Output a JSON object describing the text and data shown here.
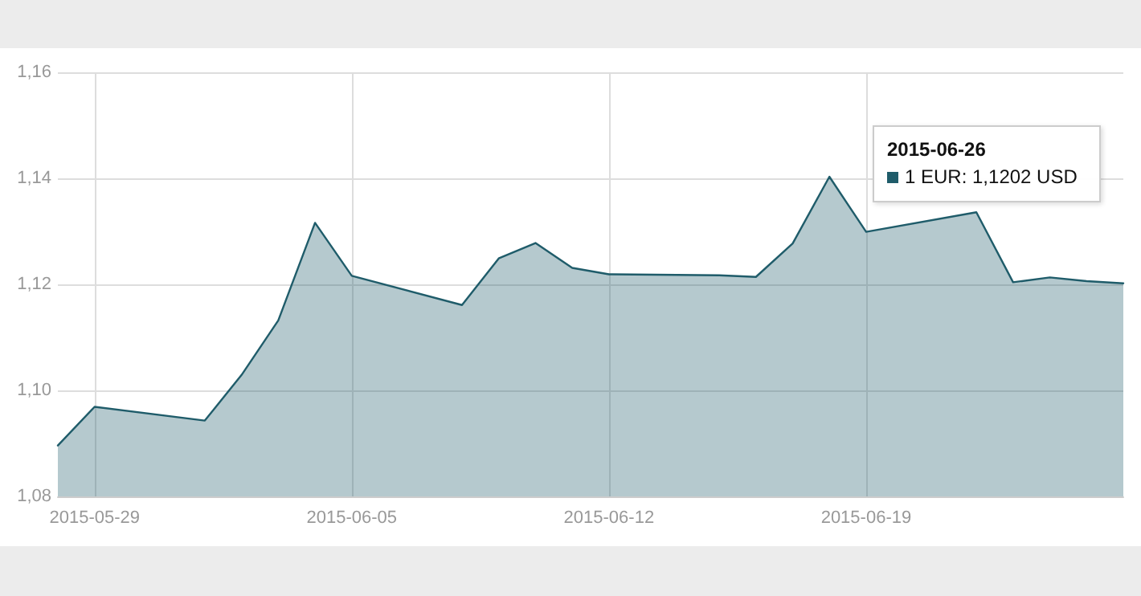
{
  "chart_data": {
    "type": "area",
    "x": [
      "2015-05-28",
      "2015-05-29",
      "2015-06-01",
      "2015-06-02",
      "2015-06-03",
      "2015-06-04",
      "2015-06-05",
      "2015-06-08",
      "2015-06-09",
      "2015-06-10",
      "2015-06-11",
      "2015-06-12",
      "2015-06-15",
      "2015-06-16",
      "2015-06-17",
      "2015-06-18",
      "2015-06-19",
      "2015-06-22",
      "2015-06-23",
      "2015-06-24",
      "2015-06-25",
      "2015-06-26"
    ],
    "series": [
      {
        "color": "#1f5c6a",
        "values": [
          1.0896,
          1.0969,
          1.0943,
          1.1029,
          1.1132,
          1.1316,
          1.1216,
          1.1161,
          1.1249,
          1.1278,
          1.1231,
          1.1219,
          1.1217,
          1.1214,
          1.1277,
          1.1403,
          1.1299,
          1.1336,
          1.1204,
          1.1213,
          1.1206,
          1.1202
        ]
      }
    ],
    "xlim": [
      "2015-05-28",
      "2015-06-26"
    ],
    "xticks": [
      "2015-05-29",
      "2015-06-05",
      "2015-06-12",
      "2015-06-19"
    ],
    "ylim": [
      1.08,
      1.16
    ],
    "yticks": [
      {
        "value": 1.08,
        "label": "1,08"
      },
      {
        "value": 1.1,
        "label": "1,10"
      },
      {
        "value": 1.12,
        "label": "1,12"
      },
      {
        "value": 1.14,
        "label": "1,14"
      },
      {
        "value": 1.16,
        "label": "1,16"
      }
    ],
    "annotations": [
      "2015-06-26\n1 EUR: 1,1202 USD"
    ],
    "grid": true,
    "marker": "none",
    "line_style": "solid"
  }
}
